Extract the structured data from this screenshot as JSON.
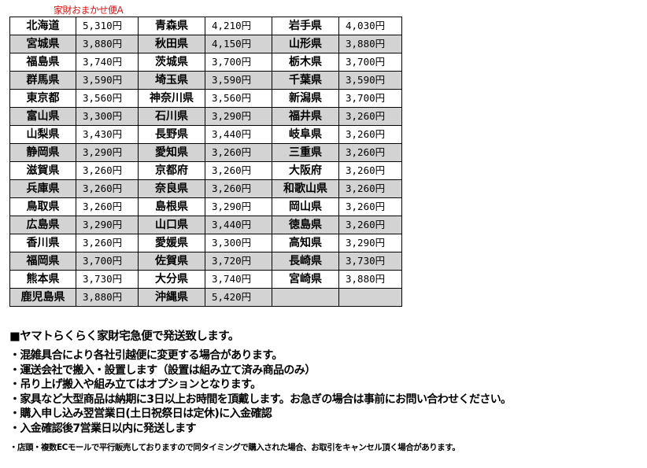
{
  "title": "家財おまかせ便A",
  "rows": [
    [
      [
        "北海道",
        "5,310円"
      ],
      [
        "青森県",
        "4,210円"
      ],
      [
        "岩手県",
        "4,030円"
      ]
    ],
    [
      [
        "宮城県",
        "3,880円"
      ],
      [
        "秋田県",
        "4,150円"
      ],
      [
        "山形県",
        "3,880円"
      ]
    ],
    [
      [
        "福島県",
        "3,740円"
      ],
      [
        "茨城県",
        "3,700円"
      ],
      [
        "栃木県",
        "3,700円"
      ]
    ],
    [
      [
        "群馬県",
        "3,590円"
      ],
      [
        "埼玉県",
        "3,590円"
      ],
      [
        "千葉県",
        "3,590円"
      ]
    ],
    [
      [
        "東京都",
        "3,560円"
      ],
      [
        "神奈川県",
        "3,560円"
      ],
      [
        "新潟県",
        "3,700円"
      ]
    ],
    [
      [
        "富山県",
        "3,300円"
      ],
      [
        "石川県",
        "3,290円"
      ],
      [
        "福井県",
        "3,260円"
      ]
    ],
    [
      [
        "山梨県",
        "3,430円"
      ],
      [
        "長野県",
        "3,440円"
      ],
      [
        "岐阜県",
        "3,260円"
      ]
    ],
    [
      [
        "静岡県",
        "3,290円"
      ],
      [
        "愛知県",
        "3,260円"
      ],
      [
        "三重県",
        "3,260円"
      ]
    ],
    [
      [
        "滋賀県",
        "3,260円"
      ],
      [
        "京都府",
        "3,260円"
      ],
      [
        "大阪府",
        "3,260円"
      ]
    ],
    [
      [
        "兵庫県",
        "3,260円"
      ],
      [
        "奈良県",
        "3,260円"
      ],
      [
        "和歌山県",
        "3,260円"
      ]
    ],
    [
      [
        "鳥取県",
        "3,260円"
      ],
      [
        "島根県",
        "3,290円"
      ],
      [
        "岡山県",
        "3,260円"
      ]
    ],
    [
      [
        "広島県",
        "3,290円"
      ],
      [
        "山口県",
        "3,440円"
      ],
      [
        "徳島県",
        "3,260円"
      ]
    ],
    [
      [
        "香川県",
        "3,260円"
      ],
      [
        "愛媛県",
        "3,300円"
      ],
      [
        "高知県",
        "3,290円"
      ]
    ],
    [
      [
        "福岡県",
        "3,700円"
      ],
      [
        "佐賀県",
        "3,720円"
      ],
      [
        "長崎県",
        "3,730円"
      ]
    ],
    [
      [
        "熊本県",
        "3,730円"
      ],
      [
        "大分県",
        "3,740円"
      ],
      [
        "宮崎県",
        "3,880円"
      ]
    ],
    [
      [
        "鹿児島県",
        "3,880円"
      ],
      [
        "沖縄県",
        "5,420円"
      ],
      [
        "",
        ""
      ]
    ]
  ],
  "notes": {
    "heading": "■ヤマトらくらく家財宅急便で発送致します。",
    "bullets": [
      "・混雑具合により各社引越便に変更する場合があります。",
      "・運送会社で搬入・設置します（設置は組み立て済み商品のみ）",
      "・吊り上げ搬入や組み立てはオプションとなります。",
      "・家具など大型商品は納期に3日以上お時間を頂戴します。お急ぎの場合は事前にお問い合わせください。",
      "・購入申し込み翌営業日(土日祝祭日は定休)に入金確認",
      "・入金確認後7営業日以内に発送します"
    ],
    "footnote": "・店頭・複数ECモールで平行販売しておりますので同タイミングで購入された場合、お取引をキャンセル頂く場合があります。"
  },
  "colors": {
    "title": "#e81010",
    "stripe": "#d3d3d3"
  }
}
